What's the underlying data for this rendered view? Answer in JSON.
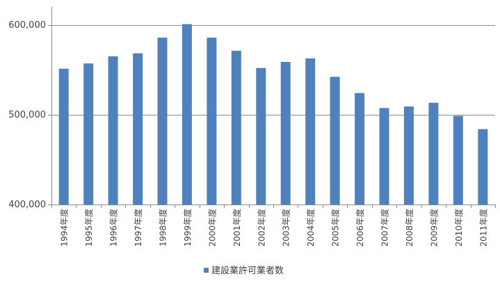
{
  "chart_data": {
    "type": "bar",
    "categories": [
      "1994年度",
      "1995年度",
      "1996年度",
      "1997年度",
      "1998年度",
      "1999年度",
      "2000年度",
      "2001年度",
      "2002年度",
      "2003年度",
      "2004年度",
      "2005年度",
      "2006年度",
      "2007年度",
      "2008年度",
      "2009年度",
      "2010年度",
      "2011年度"
    ],
    "series": [
      {
        "name": "建設業許可業者数",
        "color": "#4f81bd",
        "values": [
          551400,
          557200,
          565100,
          568500,
          586000,
          601000,
          586000,
          571400,
          552200,
          558900,
          562800,
          542300,
          524300,
          507500,
          509200,
          513400,
          498800,
          484000
        ]
      }
    ],
    "ylim": [
      400000,
      600000
    ],
    "yticks": [
      400000,
      500000,
      600000
    ],
    "ytick_labels": [
      "400,000",
      "500,000",
      "600,000"
    ],
    "grid": "horizontal",
    "legend_position": "bottom",
    "gridline_color": "#8c8c8c",
    "axis_color": "#8c8c8c"
  }
}
